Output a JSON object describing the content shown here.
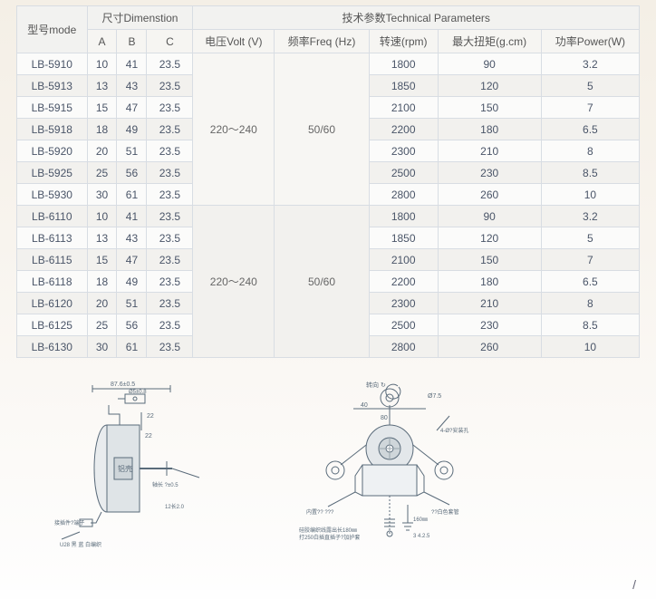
{
  "header": {
    "model": "型号mode",
    "dimension": "尺寸Dimenstion",
    "tech": "技术参数Technical Parameters",
    "A": "A",
    "B": "B",
    "C": "C",
    "volt": "电压Volt (V)",
    "freq": "频率Freq (Hz)",
    "rpm": "转速(rpm)",
    "torque": "最大扭矩(g.cm)",
    "power": "功率Power(W)"
  },
  "merged1": {
    "volt": "220～240",
    "freq": "50/60"
  },
  "merged2": {
    "volt": "220～240",
    "freq": "50/60"
  },
  "rows": [
    {
      "m": "LB-5910",
      "a": "10",
      "b": "41",
      "c": "23.5",
      "rpm": "1800",
      "tq": "90",
      "pw": "3.2"
    },
    {
      "m": "LB-5913",
      "a": "13",
      "b": "43",
      "c": "23.5",
      "rpm": "1850",
      "tq": "120",
      "pw": "5"
    },
    {
      "m": "LB-5915",
      "a": "15",
      "b": "47",
      "c": "23.5",
      "rpm": "2100",
      "tq": "150",
      "pw": "7"
    },
    {
      "m": "LB-5918",
      "a": "18",
      "b": "49",
      "c": "23.5",
      "rpm": "2200",
      "tq": "180",
      "pw": "6.5"
    },
    {
      "m": "LB-5920",
      "a": "20",
      "b": "51",
      "c": "23.5",
      "rpm": "2300",
      "tq": "210",
      "pw": "8"
    },
    {
      "m": "LB-5925",
      "a": "25",
      "b": "56",
      "c": "23.5",
      "rpm": "2500",
      "tq": "230",
      "pw": "8.5"
    },
    {
      "m": "LB-5930",
      "a": "30",
      "b": "61",
      "c": "23.5",
      "rpm": "2800",
      "tq": "260",
      "pw": "10"
    },
    {
      "m": "LB-6110",
      "a": "10",
      "b": "41",
      "c": "23.5",
      "rpm": "1800",
      "tq": "90",
      "pw": "3.2"
    },
    {
      "m": "LB-6113",
      "a": "13",
      "b": "43",
      "c": "23.5",
      "rpm": "1850",
      "tq": "120",
      "pw": "5"
    },
    {
      "m": "LB-6115",
      "a": "15",
      "b": "47",
      "c": "23.5",
      "rpm": "2100",
      "tq": "150",
      "pw": "7"
    },
    {
      "m": "LB-6118",
      "a": "18",
      "b": "49",
      "c": "23.5",
      "rpm": "2200",
      "tq": "180",
      "pw": "6.5"
    },
    {
      "m": "LB-6120",
      "a": "20",
      "b": "51",
      "c": "23.5",
      "rpm": "2300",
      "tq": "210",
      "pw": "8"
    },
    {
      "m": "LB-6125",
      "a": "25",
      "b": "56",
      "c": "23.5",
      "rpm": "2500",
      "tq": "230",
      "pw": "8.5"
    },
    {
      "m": "LB-6130",
      "a": "30",
      "b": "61",
      "c": "23.5",
      "rpm": "2800",
      "tq": "260",
      "pw": "10"
    }
  ],
  "diagram": {
    "d1_top": "87.6±0.5",
    "d1_dia": "Ø5±0.8",
    "d1_dim22a": "22",
    "d1_dim22b": "22",
    "d1_body": "铝壳",
    "d1_right": "轴长 ?±0.5",
    "d1_left": "接插件?端子",
    "d1_bot": "U28 黑 蓝 白编织",
    "d1_right2": "12长2.0",
    "d2_top": "转向 ↻",
    "d2_r": "Ø7.5",
    "d2_x40": "40",
    "d2_x80": "80",
    "d2_holes": "4-Ø?安装孔",
    "d2_leftnote": "内置??  ???",
    "d2_rightnote": "??白色套管",
    "d2_wire": "硅胶编织线露出长180㎜\n打250白插直插子?加护套",
    "d2_gnd": "160㎜",
    "d2_nums": "3  4.2.5"
  },
  "slash": "/",
  "style": {
    "border": "#d8dde3",
    "text": "#4a5568",
    "hdr_bg": "#f2f2f0",
    "row_bg": "#fbfbfa",
    "row_alt": "#f2f1ee",
    "line": "#5a6b7a",
    "shade": "#c5cdd2"
  }
}
